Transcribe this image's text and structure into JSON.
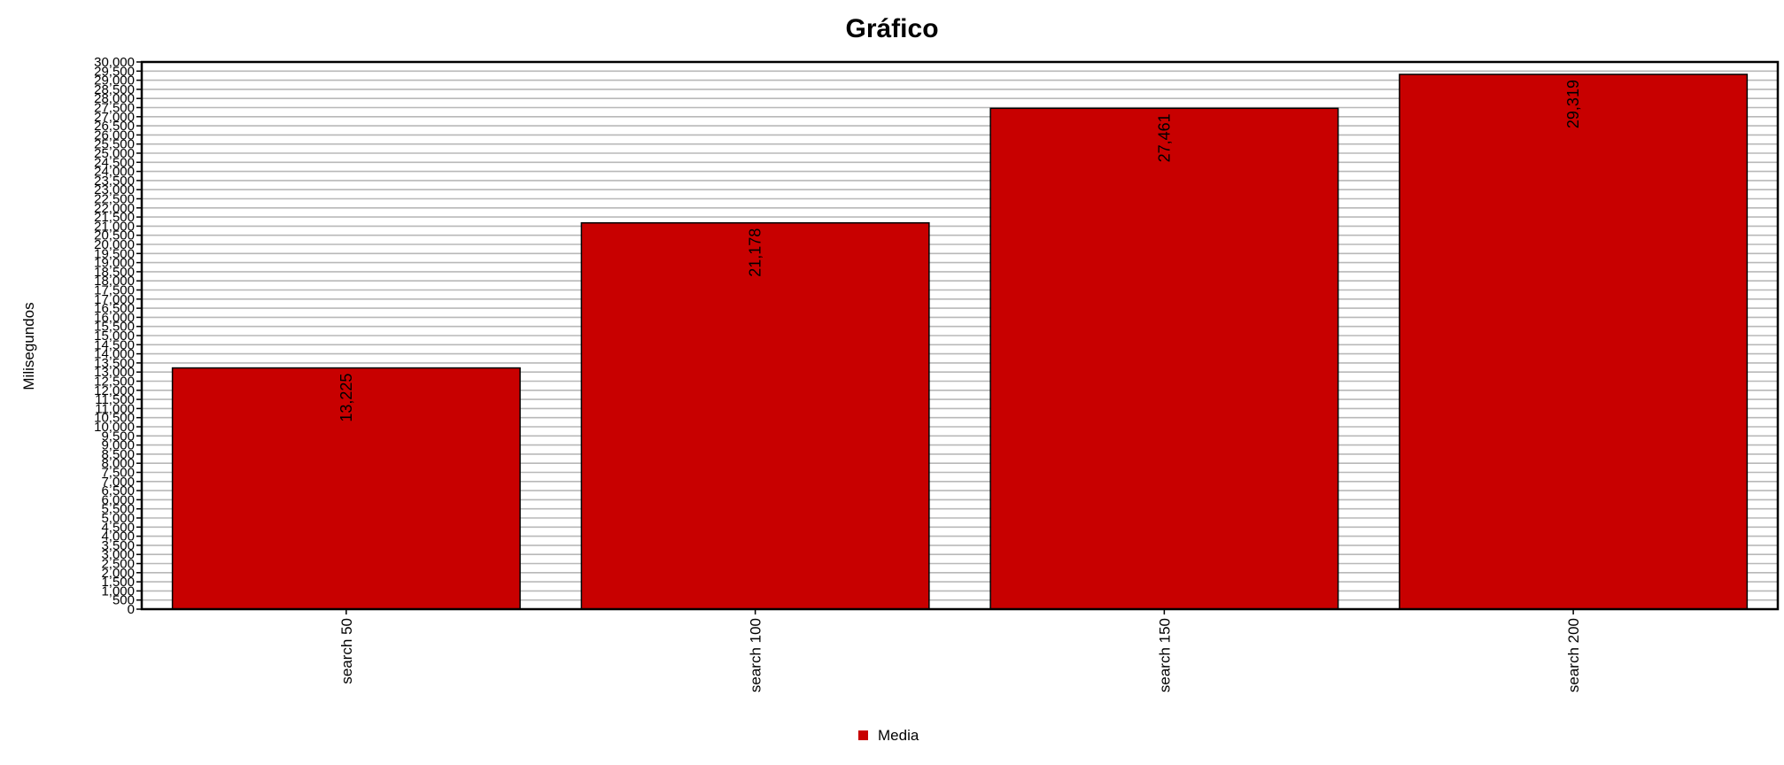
{
  "chart_data": {
    "type": "bar",
    "title": "Gráfico",
    "xlabel": "",
    "ylabel": "Milisegundos",
    "categories": [
      "search 50",
      "search 100",
      "search 150",
      "search 200"
    ],
    "series": [
      {
        "name": "Media",
        "values": [
          13225,
          21178,
          27461,
          29319
        ],
        "labels": [
          "13,225",
          "21,178",
          "27,461",
          "29,319"
        ],
        "color": "#c80000"
      }
    ],
    "ylim": [
      0,
      30000
    ],
    "y_tick_step": 500,
    "grid": true,
    "legend_position": "bottom-center",
    "colors": {
      "bar_fill": "#c80000",
      "grid": "#b8b8b8",
      "frame": "#000000",
      "background": "#ffffff"
    }
  }
}
